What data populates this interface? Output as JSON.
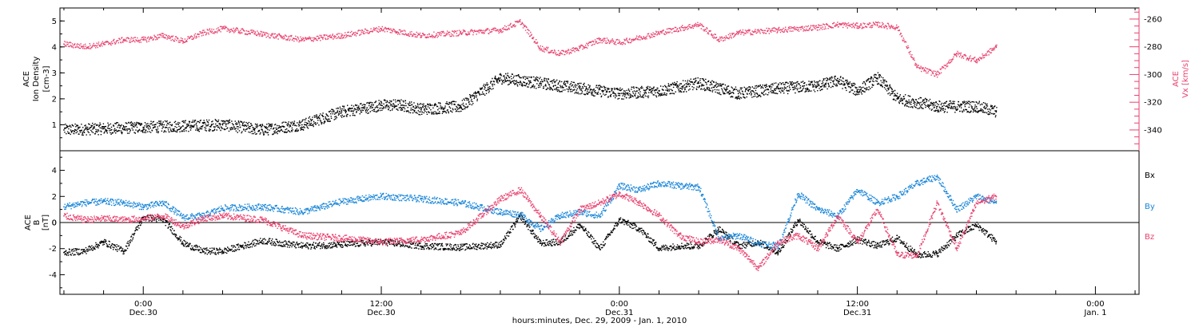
{
  "chart_data": [
    {
      "type": "scatter",
      "panel": "top",
      "ylabel_left": [
        "ACE",
        "Ion Density",
        "[cm-3]"
      ],
      "ylabel_right": [
        "ACE",
        "Vx [km/s]"
      ],
      "yticks_left": [
        "1",
        "2",
        "3",
        "4",
        "5"
      ],
      "ylim_left": [
        0,
        5.5
      ],
      "yticks_right": [
        "-260",
        "-280",
        "-300",
        "-320",
        "-340"
      ],
      "ylim_right": [
        -355,
        -252
      ],
      "grid": false,
      "series": [
        {
          "axis": "left",
          "color": "#000000",
          "x": [
            -4,
            -2,
            0,
            2,
            4,
            6,
            8,
            10,
            12,
            13,
            14,
            16,
            18,
            20,
            22,
            24,
            26,
            28,
            30,
            32,
            34,
            35,
            36,
            37,
            38,
            40,
            42,
            43
          ],
          "y": [
            0.8,
            0.85,
            0.9,
            0.95,
            1.0,
            0.8,
            1.0,
            1.5,
            1.75,
            1.75,
            1.6,
            1.7,
            2.8,
            2.6,
            2.4,
            2.2,
            2.3,
            2.6,
            2.2,
            2.4,
            2.5,
            2.7,
            2.3,
            2.8,
            2.0,
            1.7,
            1.7,
            1.5
          ]
        },
        {
          "axis": "right",
          "color": "#e8416e",
          "x": [
            -4,
            -3,
            -2,
            -1,
            0,
            1,
            2,
            3,
            4,
            6,
            8,
            10,
            12,
            14,
            16,
            18,
            19,
            20,
            21,
            22,
            23,
            24,
            26,
            28,
            29,
            30,
            32,
            34,
            35,
            36,
            37,
            38,
            39,
            40,
            41,
            42,
            43
          ],
          "y": [
            -278,
            -280,
            -278,
            -275,
            -275,
            -272,
            -276,
            -270,
            -267,
            -271,
            -275,
            -272,
            -267,
            -272,
            -270,
            -268,
            -262,
            -281,
            -285,
            -281,
            -275,
            -277,
            -270,
            -264,
            -275,
            -270,
            -268,
            -266,
            -264,
            -265,
            -264,
            -266,
            -295,
            -300,
            -285,
            -290,
            -280
          ]
        }
      ]
    },
    {
      "type": "scatter",
      "panel": "bottom",
      "ylabel": [
        "ACE",
        "B",
        "[nT]"
      ],
      "yticks": [
        "4",
        "2",
        "0",
        "-2",
        "-4"
      ],
      "ylim": [
        -5.5,
        5.5
      ],
      "xlabel": "hours:minutes, Dec. 29, 2009 - Jan. 1, 2010",
      "xticks": [
        {
          "time": "0:00",
          "date": "Dec.30",
          "hour": 0
        },
        {
          "time": "12:00",
          "date": "Dec.30",
          "hour": 12
        },
        {
          "time": "0:00",
          "date": "Dec.31",
          "hour": 24
        },
        {
          "time": "12:00",
          "date": "Dec.31",
          "hour": 36
        },
        {
          "time": "0:00",
          "date": "Jan. 1",
          "hour": 48
        }
      ],
      "xlim": [
        -4.2,
        50.2
      ],
      "grid": false,
      "legend_position": "right",
      "series": [
        {
          "name": "Bx",
          "color": "#000000",
          "x": [
            -4,
            -3,
            -2,
            -1,
            0,
            1,
            2,
            3,
            4,
            6,
            8,
            10,
            12,
            14,
            16,
            18,
            19,
            20,
            21,
            22,
            23,
            24,
            25,
            26,
            27,
            28,
            29,
            30,
            31,
            32,
            33,
            34,
            35,
            36,
            37,
            38,
            39,
            40,
            41,
            42,
            43
          ],
          "y": [
            -2.3,
            -2.2,
            -1.5,
            -2.2,
            0.4,
            0.2,
            -1.6,
            -2.2,
            -2.2,
            -1.4,
            -1.8,
            -1.7,
            -1.5,
            -1.8,
            -1.9,
            -1.7,
            0.5,
            -1.6,
            -1.5,
            -0.2,
            -2.0,
            0.2,
            -0.5,
            -2.0,
            -1.8,
            -1.8,
            -0.5,
            -1.8,
            -1.5,
            -2.3,
            0.2,
            -1.5,
            -2.0,
            -1.3,
            -1.8,
            -1.2,
            -2.5,
            -2.4,
            -1.0,
            -0.2,
            -1.5
          ]
        },
        {
          "name": "By",
          "color": "#1a86d8",
          "x": [
            -4,
            -3,
            -2,
            -1,
            0,
            1,
            2,
            3,
            4,
            6,
            8,
            10,
            12,
            14,
            16,
            18,
            19,
            20,
            21,
            22,
            23,
            24,
            25,
            26,
            27,
            28,
            29,
            30,
            31,
            32,
            33,
            34,
            35,
            36,
            37,
            38,
            39,
            40,
            41,
            42,
            43
          ],
          "y": [
            1.2,
            1.5,
            1.6,
            1.5,
            1.2,
            1.5,
            0.4,
            0.5,
            1.1,
            1.2,
            0.8,
            1.6,
            2.0,
            1.8,
            1.5,
            0.8,
            0.6,
            -0.5,
            0.5,
            0.8,
            0.5,
            2.8,
            2.5,
            3.0,
            2.8,
            2.7,
            -1.2,
            -1.0,
            -1.6,
            -1.8,
            2.2,
            1.0,
            0.5,
            2.5,
            1.5,
            2.0,
            3.0,
            3.5,
            1.0,
            2.0,
            1.5
          ]
        },
        {
          "name": "Bz",
          "color": "#e8416e",
          "x": [
            -4,
            -3,
            -2,
            -1,
            0,
            1,
            2,
            3,
            4,
            6,
            8,
            10,
            12,
            14,
            16,
            18,
            19,
            20,
            21,
            22,
            23,
            24,
            25,
            26,
            27,
            28,
            29,
            30,
            31,
            32,
            33,
            34,
            35,
            36,
            37,
            38,
            39,
            40,
            41,
            42,
            43
          ],
          "y": [
            0.5,
            0.2,
            0.3,
            0.2,
            0.3,
            0.5,
            -0.3,
            0.3,
            0.5,
            0.2,
            -1.0,
            -1.2,
            -1.5,
            -1.3,
            -0.8,
            1.8,
            2.5,
            0.5,
            -1.5,
            1.0,
            1.5,
            2.2,
            1.5,
            0.5,
            -1.0,
            -1.5,
            -1.3,
            -2.0,
            -3.5,
            -1.5,
            -1.0,
            -2.0,
            0.5,
            -1.5,
            1.0,
            -2.5,
            -2.5,
            1.5,
            -2.0,
            1.5,
            2.0
          ]
        }
      ]
    }
  ]
}
